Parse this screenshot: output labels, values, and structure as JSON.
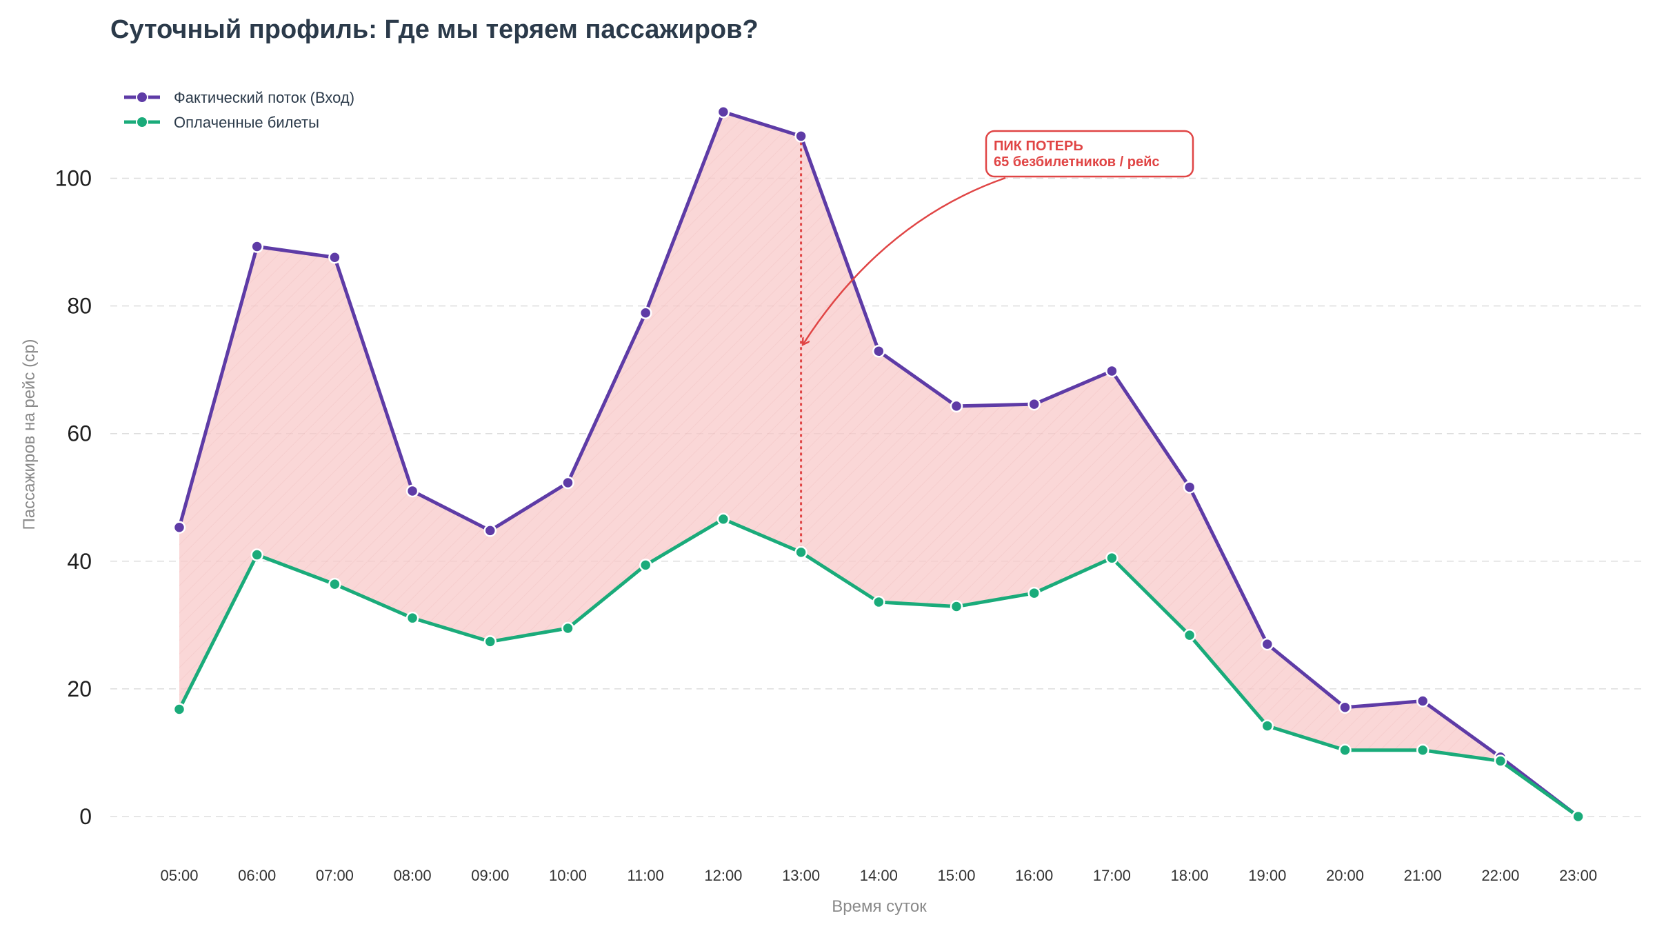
{
  "chart_data": {
    "type": "line",
    "title": "Суточный профиль: Где мы теряем пассажиров?",
    "xlabel": "Время суток",
    "ylabel": "Пассажиров на рейс (ср)",
    "ylim": [
      -4,
      113
    ],
    "yticks": [
      0,
      20,
      40,
      60,
      80,
      100
    ],
    "grid": "horizontal-dashed",
    "legend_position": "top-left",
    "categories": [
      "05:00",
      "06:00",
      "07:00",
      "08:00",
      "09:00",
      "10:00",
      "11:00",
      "12:00",
      "13:00",
      "14:00",
      "15:00",
      "16:00",
      "17:00",
      "18:00",
      "19:00",
      "20:00",
      "21:00",
      "22:00",
      "23:00"
    ],
    "series": [
      {
        "name": "Фактический поток (Вход)",
        "color": "#5e3ba6",
        "values": [
          45.3,
          89.3,
          87.6,
          51.0,
          44.8,
          52.3,
          78.9,
          110.4,
          106.6,
          72.9,
          64.3,
          64.6,
          69.8,
          51.6,
          27.0,
          17.1,
          18.1,
          9.3,
          0
        ]
      },
      {
        "name": "Оплаченные билеты",
        "color": "#1aab7a",
        "values": [
          16.8,
          41.0,
          36.4,
          31.1,
          27.4,
          29.5,
          39.4,
          46.6,
          41.4,
          33.6,
          32.9,
          35.0,
          40.5,
          28.4,
          14.2,
          10.4,
          10.4,
          8.7,
          0
        ]
      }
    ],
    "fill_between_color": "#f5b7b7",
    "annotation": {
      "line1": "ПИК ПОТЕРЬ",
      "line2": "65 безбилетников / рейс",
      "category": "13:00",
      "arrow_target_y": 74,
      "color": "#e04545"
    }
  }
}
